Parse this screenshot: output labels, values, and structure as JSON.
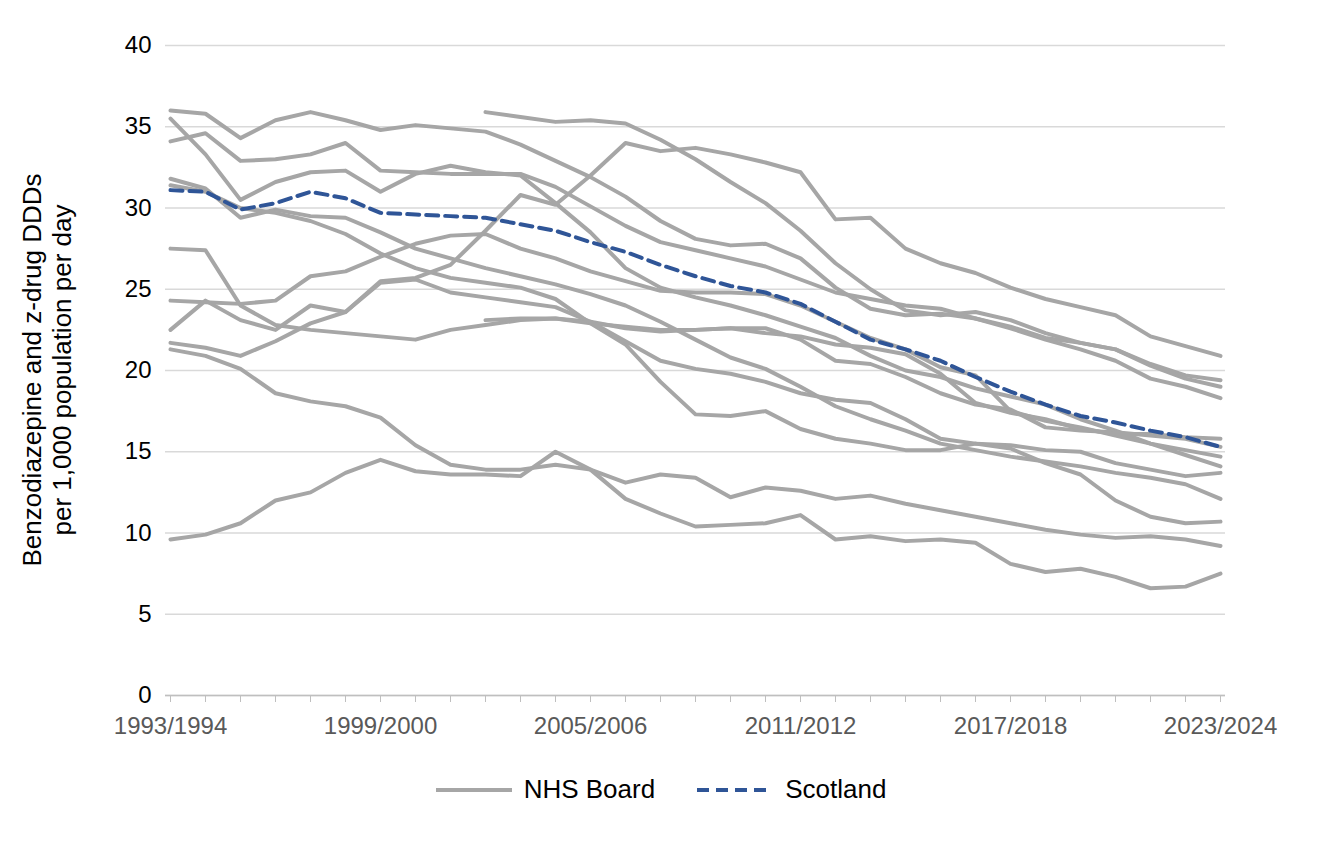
{
  "chart_data": {
    "type": "line",
    "y_label": "Benzodiazepine and z-drug DDDs per 1,000 population per day",
    "categories": [
      "1993/1994",
      null,
      null,
      null,
      null,
      null,
      "1999/2000",
      null,
      null,
      null,
      null,
      null,
      "2005/2006",
      null,
      null,
      null,
      null,
      null,
      "2011/2012",
      null,
      null,
      null,
      null,
      null,
      "2017/2018",
      null,
      null,
      null,
      null,
      null,
      "2023/2024"
    ],
    "ylim": [
      0,
      40
    ],
    "yticks": [
      0,
      5,
      10,
      15,
      20,
      25,
      30,
      35,
      40
    ],
    "grid": true,
    "legend": "bottom",
    "series": [
      {
        "name": "NHS Board",
        "color": "#a6a6a6",
        "line_style": "solid",
        "values": [
          36.0,
          35.8,
          34.3,
          35.4,
          35.9,
          35.4,
          34.8,
          35.1,
          34.9,
          34.7,
          33.9,
          32.9,
          31.9,
          30.7,
          29.2,
          28.1,
          27.7,
          27.8,
          26.9,
          25.1,
          23.8,
          23.4,
          23.5,
          23.2,
          22.7,
          22.0,
          21.7,
          21.3,
          20.4,
          19.7,
          19.4
        ]
      },
      {
        "name": "NHS Board",
        "color": "#a6a6a6",
        "line_style": "solid",
        "values": [
          35.5,
          33.3,
          30.5,
          31.6,
          32.2,
          32.3,
          31.0,
          32.1,
          32.6,
          32.2,
          32.0,
          30.3,
          28.5,
          26.3,
          25.1,
          24.5,
          24.0,
          23.4,
          22.7,
          22.0,
          20.9,
          20.0,
          19.6,
          18.9,
          18.4,
          17.9,
          17.0,
          16.3,
          15.5,
          14.8,
          14.1
        ]
      },
      {
        "name": "NHS Board",
        "color": "#a6a6a6",
        "line_style": "solid",
        "values": [
          34.1,
          34.6,
          32.9,
          33.0,
          33.3,
          34.0,
          32.3,
          32.2,
          32.1,
          32.1,
          32.1,
          31.3,
          30.1,
          28.9,
          27.9,
          27.4,
          26.9,
          26.4,
          25.6,
          24.8,
          24.4,
          24.0,
          23.8,
          23.2,
          22.6,
          21.9,
          21.3,
          20.6,
          19.5,
          19.0,
          18.3
        ]
      },
      {
        "name": "NHS Board",
        "color": "#a6a6a6",
        "line_style": "solid",
        "values": [
          31.8,
          31.2,
          29.4,
          29.9,
          29.5,
          29.4,
          28.5,
          27.5,
          26.9,
          26.3,
          25.8,
          25.3,
          24.7,
          24.0,
          23.0,
          21.9,
          20.8,
          20.1,
          19.0,
          17.8,
          17.0,
          16.3,
          15.5,
          15.1,
          14.7,
          14.4,
          14.1,
          13.7,
          13.4,
          13.0,
          12.1
        ]
      },
      {
        "name": "NHS Board",
        "color": "#a6a6a6",
        "line_style": "solid",
        "values": [
          31.4,
          31.0,
          30.0,
          29.7,
          29.2,
          28.4,
          27.2,
          26.3,
          25.7,
          25.4,
          25.1,
          24.4,
          22.9,
          21.6,
          19.3,
          17.3,
          17.2,
          17.5,
          16.4,
          15.8,
          15.5,
          15.1,
          15.1,
          15.5,
          15.4,
          15.1,
          15.0,
          14.3,
          13.9,
          13.5,
          13.7
        ]
      },
      {
        "name": "NHS Board",
        "color": "#a6a6a6",
        "line_style": "solid",
        "values": [
          27.5,
          27.4,
          24.0,
          22.8,
          22.5,
          22.3,
          22.1,
          21.9,
          22.5,
          22.8,
          23.1,
          23.2,
          22.9,
          22.7,
          22.5,
          22.5,
          22.6,
          22.6,
          21.9,
          20.6,
          20.4,
          19.6,
          18.6,
          17.9,
          17.6,
          16.5,
          16.3,
          16.2,
          16.0,
          15.8,
          15.3
        ]
      },
      {
        "name": "NHS Board",
        "color": "#a6a6a6",
        "line_style": "solid",
        "values": [
          24.3,
          24.2,
          24.1,
          24.3,
          25.8,
          26.1,
          27.0,
          27.8,
          28.3,
          28.4,
          27.5,
          26.9,
          26.1,
          25.5,
          24.9,
          24.8,
          24.8,
          24.7,
          24.0,
          23.0,
          22.0,
          21.3,
          20.2,
          19.7,
          17.5,
          16.9,
          16.5,
          16.0,
          15.5,
          15.1,
          14.7
        ]
      },
      {
        "name": "NHS Board",
        "color": "#a6a6a6",
        "line_style": "solid",
        "values": [
          22.5,
          24.3,
          23.1,
          22.5,
          24.0,
          23.6,
          25.5,
          25.7,
          26.5,
          28.6,
          30.8,
          30.2,
          32.0,
          34.0,
          33.5,
          33.7,
          33.3,
          32.8,
          32.2,
          29.3,
          29.4,
          27.5,
          26.6,
          26.0,
          25.1,
          24.4,
          23.9,
          23.4,
          22.1,
          21.5,
          20.9
        ]
      },
      {
        "name": "NHS Board",
        "color": "#a6a6a6",
        "line_style": "solid",
        "values": [
          null,
          null,
          null,
          null,
          null,
          null,
          null,
          null,
          null,
          35.9,
          35.6,
          35.3,
          35.4,
          35.2,
          34.2,
          33.0,
          31.6,
          30.3,
          28.6,
          26.6,
          25.0,
          23.7,
          23.4,
          23.6,
          23.1,
          22.3,
          21.7,
          21.3,
          20.3,
          19.5,
          19.0
        ]
      },
      {
        "name": "NHS Board",
        "color": "#a6a6a6",
        "line_style": "solid",
        "values": [
          null,
          null,
          null,
          null,
          null,
          null,
          null,
          null,
          null,
          23.1,
          23.2,
          23.2,
          23.0,
          22.6,
          22.4,
          22.5,
          22.6,
          22.3,
          22.1,
          21.6,
          21.4,
          21.0,
          19.8,
          18.0,
          17.4,
          17.0,
          16.4,
          16.1,
          16.1,
          15.9,
          15.8
        ]
      },
      {
        "name": "NHS Board",
        "color": "#a6a6a6",
        "line_style": "solid",
        "values": [
          21.7,
          21.4,
          20.9,
          21.8,
          22.9,
          23.6,
          25.4,
          25.6,
          24.8,
          24.5,
          24.2,
          23.9,
          23.0,
          21.8,
          20.6,
          20.1,
          19.8,
          19.3,
          18.6,
          18.2,
          18.0,
          17.0,
          15.8,
          15.5,
          15.2,
          14.3,
          13.6,
          12.0,
          11.0,
          10.6,
          10.7
        ]
      },
      {
        "name": "NHS Board",
        "color": "#a6a6a6",
        "line_style": "solid",
        "values": [
          21.3,
          20.9,
          20.1,
          18.6,
          18.1,
          17.8,
          17.1,
          15.4,
          14.2,
          13.9,
          13.9,
          14.2,
          13.9,
          13.1,
          13.6,
          13.4,
          12.2,
          12.8,
          12.6,
          12.1,
          12.3,
          11.8,
          11.4,
          11.0,
          10.6,
          10.2,
          9.9,
          9.7,
          9.8,
          9.6,
          9.2
        ]
      },
      {
        "name": "NHS Board",
        "color": "#a6a6a6",
        "line_style": "solid",
        "values": [
          9.6,
          9.9,
          10.6,
          12.0,
          12.5,
          13.7,
          14.5,
          13.8,
          13.6,
          13.6,
          13.5,
          15.0,
          13.9,
          12.1,
          11.2,
          10.4,
          10.5,
          10.6,
          11.1,
          9.6,
          9.8,
          9.5,
          9.6,
          9.4,
          8.1,
          7.6,
          7.8,
          7.3,
          6.6,
          6.7,
          7.5
        ]
      },
      {
        "name": "Scotland",
        "color": "#2f5597",
        "line_style": "dashed",
        "values": [
          31.1,
          31.0,
          29.9,
          30.3,
          31.0,
          30.6,
          29.7,
          29.6,
          29.5,
          29.4,
          29.0,
          28.6,
          27.9,
          27.3,
          26.5,
          25.8,
          25.2,
          24.8,
          24.1,
          23.0,
          21.9,
          21.3,
          20.6,
          19.6,
          18.7,
          17.9,
          17.2,
          16.8,
          16.3,
          15.9,
          15.3
        ]
      }
    ]
  }
}
